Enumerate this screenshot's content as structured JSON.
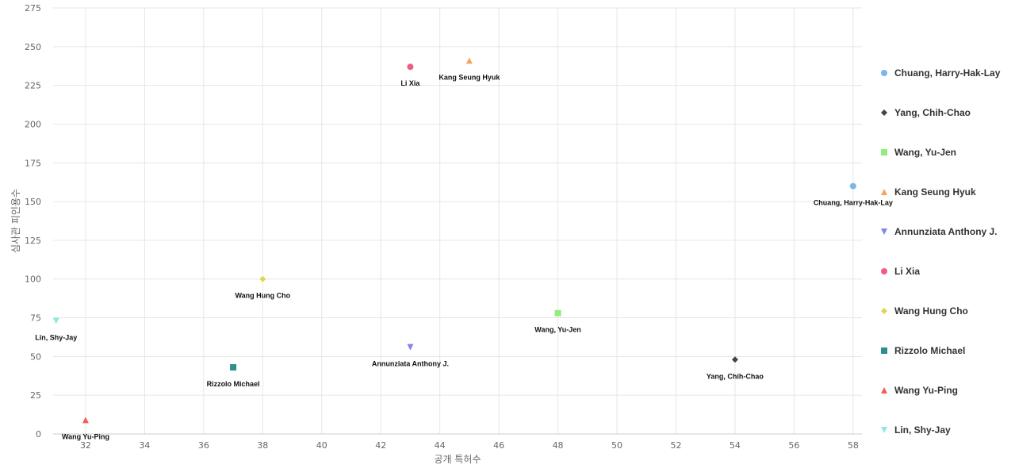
{
  "chart_data": {
    "type": "scatter",
    "xlabel": "공개 특허수",
    "ylabel": "심사관 피인용수",
    "xlim": [
      30.9,
      58.3
    ],
    "ylim": [
      0,
      275
    ],
    "xticks": [
      32,
      34,
      36,
      38,
      40,
      42,
      44,
      46,
      48,
      50,
      52,
      54,
      56,
      58
    ],
    "yticks": [
      0,
      25,
      50,
      75,
      100,
      125,
      150,
      175,
      200,
      225,
      250,
      275
    ],
    "grid": true,
    "legend": "right",
    "series": [
      {
        "name": "Chuang, Harry-Hak-Lay",
        "marker": "circle",
        "color": "#7cb5ec",
        "points": [
          {
            "x": 58,
            "y": 160,
            "label": "Chuang, Harry-Hak-Lay"
          }
        ]
      },
      {
        "name": "Yang, Chih-Chao",
        "marker": "diamond",
        "color": "#434348",
        "points": [
          {
            "x": 54,
            "y": 48,
            "label": "Yang, Chih-Chao"
          }
        ]
      },
      {
        "name": "Wang, Yu-Jen",
        "marker": "square",
        "color": "#90ed7d",
        "points": [
          {
            "x": 48,
            "y": 78,
            "label": "Wang, Yu-Jen"
          }
        ]
      },
      {
        "name": "Kang Seung Hyuk",
        "marker": "triangle",
        "color": "#f7a35c",
        "points": [
          {
            "x": 45,
            "y": 241,
            "label": "Kang Seung Hyuk"
          }
        ]
      },
      {
        "name": "Annunziata Anthony J.",
        "marker": "triangle-down",
        "color": "#8085e9",
        "points": [
          {
            "x": 43,
            "y": 56,
            "label": "Annunziata Anthony J."
          }
        ]
      },
      {
        "name": "Li Xia",
        "marker": "circle",
        "color": "#f15c80",
        "points": [
          {
            "x": 43,
            "y": 237,
            "label": "Li Xia"
          }
        ]
      },
      {
        "name": "Wang Hung Cho",
        "marker": "diamond",
        "color": "#e4d354",
        "points": [
          {
            "x": 38,
            "y": 100,
            "label": "Wang Hung Cho"
          }
        ]
      },
      {
        "name": "Rizzolo Michael",
        "marker": "square",
        "color": "#2b908f",
        "points": [
          {
            "x": 37,
            "y": 43,
            "label": "Rizzolo Michael"
          }
        ]
      },
      {
        "name": "Wang Yu-Ping",
        "marker": "triangle",
        "color": "#f45b5b",
        "points": [
          {
            "x": 32,
            "y": 9,
            "label": "Wang Yu-Ping"
          }
        ]
      },
      {
        "name": "Lin, Shy-Jay",
        "marker": "triangle-down",
        "color": "#91e8e1",
        "points": [
          {
            "x": 31,
            "y": 73,
            "label": "Lin, Shy-Jay"
          }
        ]
      }
    ]
  }
}
